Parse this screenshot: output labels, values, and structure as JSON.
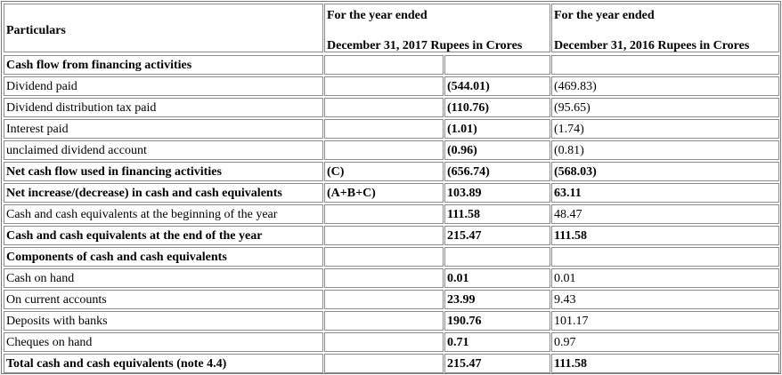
{
  "header": {
    "particulars": "Particulars",
    "col2017_line1": "For the year ended",
    "col2017_line2": "December 31, 2017 Rupees in Crores",
    "col2016_line1": "For the year ended",
    "col2016_line2": "December 31, 2016 Rupees in Crores"
  },
  "rows": [
    {
      "label": "Cash flow from financing activities",
      "note": "",
      "v2017": "",
      "v2016": "",
      "bold": true
    },
    {
      "label": "Dividend paid",
      "note": "",
      "v2017": "(544.01)",
      "v2016": "(469.83)",
      "bold": false
    },
    {
      "label": "Dividend distribution tax paid",
      "note": "",
      "v2017": "(110.76)",
      "v2016": "(95.65)",
      "bold": false
    },
    {
      "label": "Interest paid",
      "note": "",
      "v2017": "(1.01)",
      "v2016": "(1.74)",
      "bold": false
    },
    {
      "label": "unclaimed dividend account",
      "note": "",
      "v2017": "(0.96)",
      "v2016": "(0.81)",
      "bold": false
    },
    {
      "label": "Net cash flow used in financing activities",
      "note": "(C)",
      "v2017": "(656.74)",
      "v2016": "(568.03)",
      "bold": true
    },
    {
      "label": "Net increase/(decrease) in cash and cash equivalents",
      "note": "(A+B+C)",
      "v2017": "103.89",
      "v2016": "63.11",
      "bold": true
    },
    {
      "label": "Cash and cash equivalents at the beginning of the year",
      "note": "",
      "v2017": "111.58",
      "v2016": "48.47",
      "bold": false
    },
    {
      "label": "Cash and cash equivalents at the end of the year",
      "note": "",
      "v2017": "215.47",
      "v2016": "111.58",
      "bold": true
    },
    {
      "label": "Components of cash and cash equivalents",
      "note": "",
      "v2017": "",
      "v2016": "",
      "bold": true
    },
    {
      "label": "Cash on hand",
      "note": "",
      "v2017": "0.01",
      "v2016": "0.01",
      "bold": false
    },
    {
      "label": "On current accounts",
      "note": "",
      "v2017": "23.99",
      "v2016": "9.43",
      "bold": false
    },
    {
      "label": "Deposits with banks",
      "note": "",
      "v2017": "190.76",
      "v2016": "101.17",
      "bold": false
    },
    {
      "label": "Cheques on hand",
      "note": "",
      "v2017": "0.71",
      "v2016": "0.97",
      "bold": false
    },
    {
      "label": "Total cash and cash equivalents (note 4.4)",
      "note": "",
      "v2017": "215.47",
      "v2016": "111.58",
      "bold": true
    }
  ]
}
